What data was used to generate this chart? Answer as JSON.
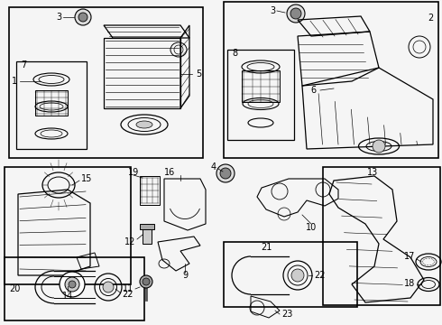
{
  "bg_color": "#f0f0f0",
  "line_color": "#1a1a1a",
  "fig_width": 4.9,
  "fig_height": 3.6,
  "dpi": 100
}
